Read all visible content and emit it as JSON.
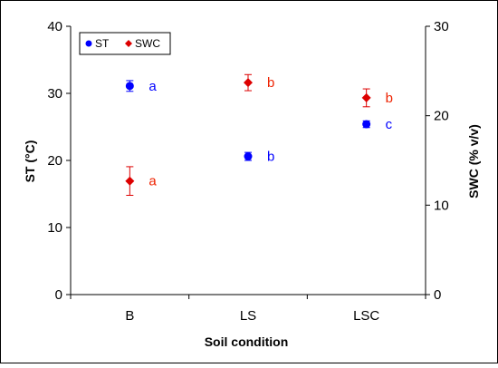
{
  "chart_data": {
    "type": "scatter",
    "categories": [
      "B",
      "LS",
      "LSC"
    ],
    "xlabel": "Soil condition",
    "y_left": {
      "label": "ST (°C)",
      "ylim": [
        0,
        40
      ],
      "ticks": [
        "0",
        "10",
        "20",
        "30",
        "40"
      ]
    },
    "y_right": {
      "label": "SWC (% v/v)",
      "ylim": [
        0,
        30
      ],
      "ticks": [
        "0",
        "10",
        "20",
        "30"
      ]
    },
    "legend": {
      "placement": "top-left",
      "entries": [
        "ST",
        "SWC"
      ]
    },
    "grid": false,
    "series": [
      {
        "name": "ST",
        "axis": "left",
        "marker": "circle",
        "color": "#0000ff",
        "values": [
          31.1,
          20.6,
          25.4
        ],
        "errors": [
          0.8,
          0.6,
          0.5
        ],
        "labels": [
          "a",
          "b",
          "c"
        ],
        "label_color": "#0000ff"
      },
      {
        "name": "SWC",
        "axis": "right",
        "marker": "diamond",
        "color": "#dd0000",
        "values": [
          12.7,
          23.7,
          22.0
        ],
        "errors": [
          1.6,
          0.9,
          1.0
        ],
        "labels": [
          "a",
          "b",
          "b"
        ],
        "label_color": "#ee2200"
      }
    ]
  }
}
